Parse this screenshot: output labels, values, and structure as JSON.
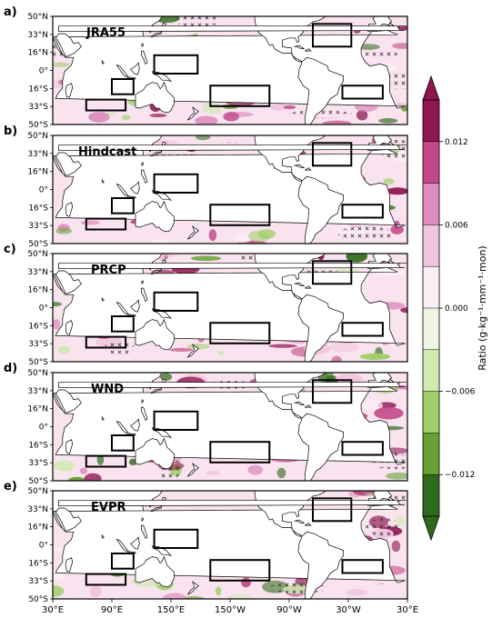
{
  "figure": {
    "panels": [
      {
        "letter": "a)",
        "name": "JRA55"
      },
      {
        "letter": "b)",
        "name": "Hindcast"
      },
      {
        "letter": "c)",
        "name": "PRCP"
      },
      {
        "letter": "d)",
        "name": "WND"
      },
      {
        "letter": "e)",
        "name": "EVPR"
      }
    ],
    "lat_ticks": [
      "50°N",
      "33°N",
      "16°N",
      "0°",
      "16°S",
      "33°S",
      "50°S"
    ],
    "lon_ticks": [
      "30°E",
      "90°E",
      "150°E",
      "150°W",
      "90°W",
      "30°W",
      "30°E"
    ],
    "colorbar": {
      "label": "Ratio (g·kg⁻¹·mm⁻¹·mon)",
      "ticks": [
        "0.012",
        "0.006",
        "0.000",
        "−0.006",
        "−0.012"
      ],
      "colors": [
        "#8e1752",
        "#c24887",
        "#dc8cbd",
        "#f2c5df",
        "#faeef5",
        "#eef6e3",
        "#d0eab1",
        "#9fcf6a",
        "#67a136",
        "#2f6b1c"
      ],
      "top_color": "#8e1752",
      "bottom_color": "#2f6b1c"
    }
  },
  "boxes": [
    {
      "lon": [
        64,
        104
      ],
      "lat": [
        -37,
        -27
      ]
    },
    {
      "lon": [
        90,
        112
      ],
      "lat": [
        -22,
        -8
      ]
    },
    {
      "lon": [
        133,
        177
      ],
      "lat": [
        -3,
        14
      ]
    },
    {
      "lon": [
        -170,
        -110
      ],
      "lat": [
        -33,
        -14
      ]
    },
    {
      "lon": [
        -66,
        -27
      ],
      "lat": [
        22,
        43
      ]
    },
    {
      "lon": [
        -36,
        5
      ],
      "lat": [
        -26,
        -14
      ]
    }
  ],
  "land": {
    "color": "#ffffff",
    "outline": "#000000",
    "polygons": [
      {
        "name": "Asia",
        "pts": [
          [
            30,
            47
          ],
          [
            30,
            30
          ],
          [
            35,
            20
          ],
          [
            43,
            12
          ],
          [
            52,
            14
          ],
          [
            58,
            22
          ],
          [
            62,
            25
          ],
          [
            67,
            25
          ],
          [
            72,
            20
          ],
          [
            77,
            8
          ],
          [
            80,
            13
          ],
          [
            86,
            22
          ],
          [
            92,
            22
          ],
          [
            97,
            17
          ],
          [
            100,
            8
          ],
          [
            104,
            1
          ],
          [
            106,
            10
          ],
          [
            109,
            14
          ],
          [
            108,
            20
          ],
          [
            114,
            22
          ],
          [
            121,
            26
          ],
          [
            122,
            31
          ],
          [
            121,
            38
          ],
          [
            126,
            38
          ],
          [
            129,
            35
          ],
          [
            131,
            42
          ],
          [
            138,
            46
          ],
          [
            141,
            50
          ],
          [
            30,
            50
          ]
        ]
      },
      {
        "name": "Africa",
        "pts": [
          [
            30,
            31
          ],
          [
            33,
            28
          ],
          [
            36,
            22
          ],
          [
            40,
            15
          ],
          [
            43,
            12
          ],
          [
            51,
            12
          ],
          [
            49,
            5
          ],
          [
            42,
            -1
          ],
          [
            40,
            -10
          ],
          [
            40,
            -16
          ],
          [
            35,
            -22
          ],
          [
            33,
            -26
          ],
          [
            28,
            -33
          ],
          [
            20,
            -35
          ],
          [
            18,
            -33
          ],
          [
            12,
            -20
          ],
          [
            12,
            -5
          ],
          [
            9,
            4
          ],
          [
            2,
            6
          ],
          [
            -8,
            4
          ],
          [
            -13,
            8
          ],
          [
            -17,
            15
          ],
          [
            -17,
            21
          ],
          [
            -13,
            27
          ],
          [
            -9,
            33
          ],
          [
            -6,
            36
          ],
          [
            10,
            37
          ],
          [
            20,
            33
          ],
          [
            30,
            31
          ]
        ]
      },
      {
        "name": "Australia",
        "pts": [
          [
            114,
            -22
          ],
          [
            114,
            -34
          ],
          [
            118,
            -35
          ],
          [
            124,
            -33
          ],
          [
            131,
            -31
          ],
          [
            135,
            -35
          ],
          [
            138,
            -35
          ],
          [
            141,
            -38
          ],
          [
            147,
            -39
          ],
          [
            150,
            -37
          ],
          [
            153,
            -31
          ],
          [
            153,
            -25
          ],
          [
            146,
            -19
          ],
          [
            143,
            -11
          ],
          [
            141,
            -15
          ],
          [
            139,
            -17
          ],
          [
            136,
            -12
          ],
          [
            131,
            -11
          ],
          [
            125,
            -14
          ],
          [
            122,
            -18
          ],
          [
            114,
            -22
          ]
        ]
      },
      {
        "name": "Madagascar",
        "pts": [
          [
            44,
            -14
          ],
          [
            49,
            -12
          ],
          [
            50,
            -16
          ],
          [
            47,
            -25
          ],
          [
            44,
            -24
          ],
          [
            43,
            -18
          ]
        ]
      },
      {
        "name": "Borneo",
        "pts": [
          [
            109,
            1
          ],
          [
            113,
            -3
          ],
          [
            116,
            -4
          ],
          [
            118,
            1
          ],
          [
            117,
            7
          ],
          [
            115,
            5
          ],
          [
            111,
            2
          ]
        ]
      },
      {
        "name": "Sumatra",
        "pts": [
          [
            95,
            5
          ],
          [
            98,
            4
          ],
          [
            106,
            -5
          ],
          [
            104,
            -6
          ],
          [
            101,
            -3
          ],
          [
            97,
            2
          ]
        ]
      },
      {
        "name": "Java",
        "pts": [
          [
            106,
            -6
          ],
          [
            114,
            -7
          ],
          [
            114,
            -8
          ],
          [
            106,
            -7
          ]
        ]
      },
      {
        "name": "NewGuinea",
        "pts": [
          [
            131,
            -1
          ],
          [
            138,
            -2
          ],
          [
            145,
            -5
          ],
          [
            150,
            -10
          ],
          [
            146,
            -9
          ],
          [
            141,
            -9
          ],
          [
            137,
            -5
          ],
          [
            132,
            -3
          ]
        ]
      },
      {
        "name": "Japan",
        "pts": [
          [
            130,
            31
          ],
          [
            134,
            34
          ],
          [
            140,
            35
          ],
          [
            141,
            40
          ],
          [
            142,
            44
          ],
          [
            145,
            43
          ],
          [
            141,
            39
          ],
          [
            140,
            34
          ],
          [
            136,
            33
          ],
          [
            131,
            31
          ]
        ]
      },
      {
        "name": "Philippines",
        "pts": [
          [
            120,
            18
          ],
          [
            122,
            18
          ],
          [
            124,
            13
          ],
          [
            126,
            7
          ],
          [
            124,
            6
          ],
          [
            122,
            11
          ],
          [
            120,
            14
          ]
        ]
      },
      {
        "name": "NewZealand",
        "pts": [
          [
            172,
            -34
          ],
          [
            178,
            -38
          ],
          [
            174,
            -41
          ],
          [
            171,
            -44
          ],
          [
            167,
            -46
          ],
          [
            170,
            -42
          ],
          [
            174,
            -39
          ]
        ]
      },
      {
        "name": "Sri Lanka",
        "pts": [
          [
            80,
            9
          ],
          [
            82,
            7
          ],
          [
            81,
            6
          ],
          [
            80,
            7
          ]
        ]
      },
      {
        "name": "Taiwan",
        "pts": [
          [
            120,
            23
          ],
          [
            121,
            25
          ],
          [
            122,
            24
          ],
          [
            121,
            22
          ]
        ]
      },
      {
        "name": "NorthAmerica",
        "pts": [
          [
            -125,
            50
          ],
          [
            -125,
            48
          ],
          [
            -124,
            42
          ],
          [
            -121,
            35
          ],
          [
            -117,
            32
          ],
          [
            -114,
            30
          ],
          [
            -110,
            23
          ],
          [
            -107,
            24
          ],
          [
            -105,
            20
          ],
          [
            -97,
            16
          ],
          [
            -93,
            16
          ],
          [
            -91,
            16
          ],
          [
            -88,
            16
          ],
          [
            -84,
            10
          ],
          [
            -80,
            8
          ],
          [
            -77,
            8
          ],
          [
            -80,
            10
          ],
          [
            -83,
            11
          ],
          [
            -87,
            14
          ],
          [
            -88,
            21
          ],
          [
            -91,
            21
          ],
          [
            -97,
            22
          ],
          [
            -97,
            28
          ],
          [
            -90,
            30
          ],
          [
            -84,
            30
          ],
          [
            -82,
            26
          ],
          [
            -80,
            27
          ],
          [
            -81,
            31
          ],
          [
            -76,
            35
          ],
          [
            -74,
            40
          ],
          [
            -70,
            42
          ],
          [
            -66,
            45
          ],
          [
            -61,
            46
          ],
          [
            -56,
            48
          ],
          [
            -53,
            50
          ]
        ]
      },
      {
        "name": "SouthAmerica",
        "pts": [
          [
            -77,
            8
          ],
          [
            -72,
            12
          ],
          [
            -64,
            10
          ],
          [
            -60,
            8
          ],
          [
            -51,
            4
          ],
          [
            -50,
            0
          ],
          [
            -44,
            -2
          ],
          [
            -35,
            -5
          ],
          [
            -35,
            -10
          ],
          [
            -39,
            -15
          ],
          [
            -41,
            -22
          ],
          [
            -48,
            -26
          ],
          [
            -53,
            -33
          ],
          [
            -58,
            -38
          ],
          [
            -63,
            -41
          ],
          [
            -65,
            -45
          ],
          [
            -67,
            -48
          ],
          [
            -69,
            -50
          ],
          [
            -74,
            -50
          ],
          [
            -74,
            -45
          ],
          [
            -73,
            -38
          ],
          [
            -71,
            -30
          ],
          [
            -70,
            -18
          ],
          [
            -76,
            -14
          ],
          [
            -81,
            -6
          ],
          [
            -80,
            -2
          ],
          [
            -80,
            1
          ],
          [
            -78,
            5
          ]
        ]
      },
      {
        "name": "Cuba",
        "pts": [
          [
            -85,
            22
          ],
          [
            -80,
            23
          ],
          [
            -75,
            20
          ],
          [
            -78,
            20
          ],
          [
            -82,
            22
          ]
        ]
      },
      {
        "name": "Hispaniola",
        "pts": [
          [
            -74,
            18
          ],
          [
            -70,
            20
          ],
          [
            -68,
            18
          ],
          [
            -72,
            18
          ]
        ]
      },
      {
        "name": "Europe",
        "pts": [
          [
            -10,
            36
          ],
          [
            -9,
            43
          ],
          [
            -2,
            43
          ],
          [
            -5,
            48
          ],
          [
            -3,
            50
          ],
          [
            10,
            50
          ],
          [
            14,
            45
          ],
          [
            12,
            44
          ],
          [
            18,
            40
          ],
          [
            15,
            38
          ],
          [
            11,
            42
          ],
          [
            5,
            43
          ],
          [
            0,
            39
          ],
          [
            -5,
            36
          ]
        ]
      },
      {
        "name": "Iberia-Italy",
        "pts": [
          [
            12,
            44
          ],
          [
            16,
            41
          ],
          [
            18,
            40
          ],
          [
            16,
            38
          ],
          [
            15,
            40
          ],
          [
            11,
            42
          ]
        ]
      },
      {
        "name": "Greece-Turkey",
        "pts": [
          [
            20,
            40
          ],
          [
            23,
            37
          ],
          [
            27,
            37
          ],
          [
            36,
            36
          ],
          [
            36,
            41
          ],
          [
            29,
            41
          ],
          [
            23,
            41
          ]
        ]
      },
      {
        "name": "Arabia",
        "pts": [
          [
            33,
            30
          ],
          [
            35,
            28
          ],
          [
            39,
            21
          ],
          [
            43,
            13
          ],
          [
            45,
            13
          ],
          [
            52,
            16
          ],
          [
            59,
            22
          ],
          [
            56,
            26
          ],
          [
            51,
            25
          ],
          [
            48,
            30
          ],
          [
            42,
            34
          ],
          [
            36,
            34
          ]
        ]
      }
    ]
  }
}
